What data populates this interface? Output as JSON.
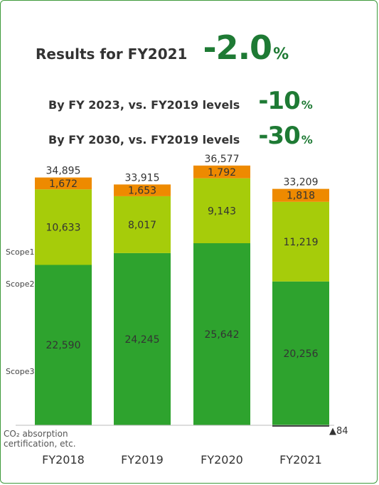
{
  "headline": {
    "result_label": "Results for FY2021",
    "result_value": "-2.0",
    "result_unit": "%",
    "targets": [
      {
        "label": "By FY 2023, vs. FY2019 levels",
        "value": "-10",
        "unit": "%"
      },
      {
        "label": "By FY 2030, vs. FY2019 levels",
        "value": "-30",
        "unit": "%"
      }
    ]
  },
  "colors": {
    "scope1": "#ee8a00",
    "scope2": "#a6cc0a",
    "scope3": "#2ea32e",
    "accent": "#1e7a34",
    "frame": "#3f9a3c"
  },
  "chart_data": {
    "type": "bar",
    "stacked": true,
    "categories": [
      "FY2018",
      "FY2019",
      "FY2020",
      "FY2021"
    ],
    "series": [
      {
        "name": "Scope3",
        "values": [
          22590,
          24245,
          25642,
          20256
        ],
        "labels": [
          "22,590",
          "24,245",
          "25,642",
          "20,256"
        ]
      },
      {
        "name": "Scope2",
        "values": [
          10633,
          8017,
          9143,
          11219
        ],
        "labels": [
          "10,633",
          "8,017",
          "9,143",
          "11,219"
        ]
      },
      {
        "name": "Scope1",
        "values": [
          1672,
          1653,
          1792,
          1818
        ],
        "labels": [
          "1,672",
          "1,653",
          "1,792",
          "1,818"
        ]
      }
    ],
    "totals": [
      "34,895",
      "33,915",
      "36,577",
      "33,209"
    ],
    "negative": {
      "label": "CO₂ absorption certification, etc.",
      "category": "FY2021",
      "value": -84,
      "value_label": "▲84"
    },
    "side_labels": [
      "Scope1",
      "Scope2",
      "Scope3"
    ]
  }
}
